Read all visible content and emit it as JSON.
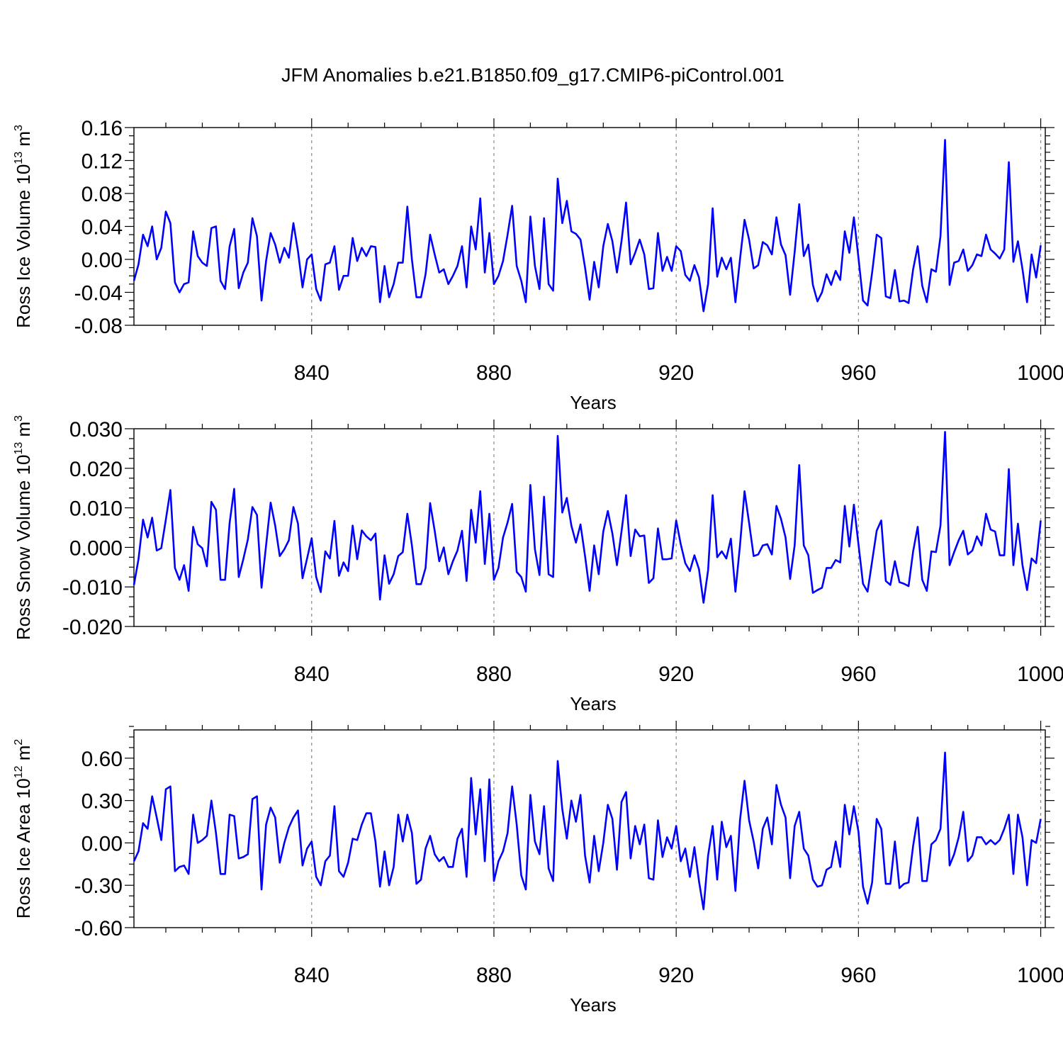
{
  "title": "JFM Anomalies b.e21.B1850.f09_g17.CMIP6-piControl.001",
  "chart_data": [
    {
      "type": "line",
      "title": "JFM Anomalies b.e21.B1850.f09_g17.CMIP6-piControl.001",
      "xlabel": "Years",
      "ylabel": "Ross Ice Volume 10",
      "ylabel_exp": "13",
      "ylabel_unit": " m",
      "ylabel_unit_exp": "3",
      "xlim": [
        801,
        1001
      ],
      "ylim": [
        -0.08,
        0.16
      ],
      "xticks": [
        "840",
        "880",
        "920",
        "960",
        "1000"
      ],
      "xtick_values": [
        840,
        880,
        920,
        960,
        1000
      ],
      "yticks": [
        "-0.08",
        "-0.04",
        "0.00",
        "0.04",
        "0.08",
        "0.12",
        "0.16"
      ],
      "ytick_values": [
        -0.08,
        -0.04,
        0.0,
        0.04,
        0.08,
        0.12,
        0.16
      ],
      "grid": "vertical dashed at major x ticks",
      "color": "#0000ff",
      "x_start": 801,
      "values": [
        -0.026,
        -0.006,
        0.03,
        0.016,
        0.04,
        0.0,
        0.014,
        0.058,
        0.044,
        -0.028,
        -0.04,
        -0.03,
        -0.028,
        0.034,
        0.004,
        -0.004,
        -0.008,
        0.038,
        0.04,
        -0.026,
        -0.036,
        0.016,
        0.037,
        -0.035,
        -0.016,
        -0.004,
        0.05,
        0.028,
        -0.05,
        -0.002,
        0.032,
        0.018,
        -0.004,
        0.014,
        0.002,
        0.044,
        0.01,
        -0.034,
        0.0,
        0.006,
        -0.036,
        -0.05,
        -0.006,
        -0.004,
        0.016,
        -0.037,
        -0.02,
        -0.02,
        0.026,
        -0.002,
        0.014,
        0.004,
        0.016,
        0.015,
        -0.052,
        -0.008,
        -0.046,
        -0.03,
        -0.004,
        -0.004,
        0.064,
        0.0,
        -0.046,
        -0.046,
        -0.018,
        0.03,
        0.006,
        -0.016,
        -0.012,
        -0.03,
        -0.02,
        -0.008,
        0.016,
        -0.034,
        0.04,
        0.012,
        0.074,
        -0.016,
        0.032,
        -0.03,
        -0.02,
        -0.002,
        0.03,
        0.065,
        -0.008,
        -0.026,
        -0.052,
        0.052,
        -0.008,
        -0.036,
        0.05,
        -0.03,
        -0.038,
        0.098,
        0.044,
        0.071,
        0.034,
        0.031,
        0.024,
        -0.01,
        -0.049,
        -0.003,
        -0.034,
        0.016,
        0.043,
        0.022,
        -0.016,
        0.022,
        0.069,
        -0.006,
        0.008,
        0.024,
        0.006,
        -0.036,
        -0.035,
        0.032,
        -0.014,
        0.003,
        -0.014,
        0.016,
        0.01,
        -0.019,
        -0.026,
        -0.007,
        -0.022,
        -0.063,
        -0.03,
        0.062,
        -0.021,
        0.002,
        -0.012,
        0.002,
        -0.052,
        0.0,
        0.048,
        0.024,
        -0.011,
        -0.007,
        0.021,
        0.017,
        0.006,
        0.051,
        0.018,
        0.005,
        -0.043,
        0.009,
        0.067,
        0.004,
        0.018,
        -0.031,
        -0.051,
        -0.04,
        -0.018,
        -0.031,
        -0.014,
        -0.025,
        0.034,
        0.008,
        0.051,
        0.002,
        -0.05,
        -0.056,
        -0.016,
        0.03,
        0.026,
        -0.045,
        -0.047,
        -0.013,
        -0.051,
        -0.05,
        -0.053,
        -0.012,
        0.016,
        -0.032,
        -0.052,
        -0.012,
        -0.015,
        0.028,
        0.145,
        -0.031,
        -0.004,
        -0.002,
        0.012,
        -0.014,
        -0.007,
        0.006,
        0.004,
        0.03,
        0.012,
        0.007,
        0.001,
        0.012,
        0.118,
        -0.003,
        0.022,
        -0.012,
        -0.052,
        0.006,
        -0.022,
        0.017
      ]
    },
    {
      "type": "line",
      "xlabel": "Years",
      "ylabel": "Ross Snow Volume 10",
      "ylabel_exp": "13",
      "ylabel_unit": " m",
      "ylabel_unit_exp": "3",
      "xlim": [
        801,
        1001
      ],
      "ylim": [
        -0.02,
        0.03
      ],
      "xticks": [
        "840",
        "880",
        "920",
        "960",
        "1000"
      ],
      "xtick_values": [
        840,
        880,
        920,
        960,
        1000
      ],
      "yticks": [
        "-0.020",
        "-0.010",
        "0.000",
        "0.010",
        "0.020",
        "0.030"
      ],
      "ytick_values": [
        -0.02,
        -0.01,
        0.0,
        0.01,
        0.02,
        0.03
      ],
      "grid": "vertical dashed at major x ticks",
      "color": "#0000ff",
      "x_start": 801,
      "values": [
        -0.0095,
        -0.003,
        0.007,
        0.0025,
        0.0075,
        -0.0008,
        -0.0002,
        0.007,
        0.0145,
        -0.0052,
        -0.0082,
        -0.0045,
        -0.011,
        0.0052,
        0.0008,
        -0.0002,
        -0.0048,
        0.0115,
        0.0095,
        -0.0082,
        -0.0082,
        0.0062,
        0.0148,
        -0.0075,
        -0.003,
        0.002,
        0.0102,
        0.0082,
        -0.0102,
        0.0005,
        0.0113,
        0.0055,
        -0.0022,
        -0.0005,
        0.0018,
        0.0102,
        0.006,
        -0.0078,
        -0.0028,
        0.0023,
        -0.0075,
        -0.0113,
        -0.001,
        -0.0028,
        0.0067,
        -0.0072,
        -0.0038,
        -0.006,
        0.0055,
        -0.003,
        0.0043,
        0.0028,
        0.0018,
        0.0035,
        -0.0132,
        -0.002,
        -0.0092,
        -0.0068,
        -0.0022,
        -0.0012,
        0.0085,
        0.0005,
        -0.0093,
        -0.0093,
        -0.0052,
        0.0112,
        0.0042,
        -0.0035,
        0.0,
        -0.0068,
        -0.0035,
        -0.0008,
        0.0042,
        -0.0085,
        0.0095,
        0.0012,
        0.0142,
        -0.0042,
        0.0085,
        -0.0082,
        -0.0052,
        0.0025,
        0.0063,
        0.011,
        -0.0062,
        -0.0075,
        -0.0112,
        0.0158,
        -0.0005,
        -0.007,
        0.0128,
        -0.0068,
        -0.0075,
        0.0282,
        0.0088,
        0.0125,
        0.0055,
        0.0012,
        0.0058,
        -0.0022,
        -0.011,
        0.0005,
        -0.0068,
        0.004,
        0.0092,
        0.0035,
        -0.0045,
        0.004,
        0.0132,
        -0.0022,
        0.0045,
        0.0028,
        0.003,
        -0.009,
        -0.0078,
        0.0048,
        -0.003,
        -0.003,
        -0.0028,
        0.0068,
        0.0008,
        -0.004,
        -0.006,
        -0.002,
        -0.0055,
        -0.014,
        -0.0058,
        0.0132,
        -0.0025,
        -0.001,
        -0.0028,
        0.0022,
        -0.0112,
        0.0005,
        0.0142,
        0.0062,
        -0.0022,
        -0.0018,
        0.0005,
        0.0008,
        -0.0018,
        0.0105,
        0.0072,
        0.0025,
        -0.008,
        0.0005,
        0.0208,
        0.0005,
        -0.002,
        -0.0115,
        -0.0108,
        -0.0102,
        -0.0052,
        -0.0052,
        -0.0032,
        -0.0038,
        0.0105,
        0.0002,
        0.0108,
        0.0008,
        -0.0092,
        -0.0112,
        -0.0035,
        0.0042,
        0.0068,
        -0.0085,
        -0.0095,
        -0.0035,
        -0.0088,
        -0.0092,
        -0.0098,
        -0.001,
        0.0052,
        -0.0082,
        -0.011,
        -0.001,
        -0.0012,
        0.0055,
        0.0292,
        -0.0045,
        -0.0012,
        0.0018,
        0.0042,
        -0.0018,
        -0.0008,
        0.0028,
        0.0005,
        0.0085,
        0.0045,
        0.004,
        -0.002,
        -0.002,
        0.0198,
        -0.0045,
        0.006,
        -0.0045,
        -0.0108,
        -0.0028,
        -0.004,
        0.0068
      ]
    },
    {
      "type": "line",
      "xlabel": "Years",
      "ylabel": "Ross Ice Area 10",
      "ylabel_exp": "12",
      "ylabel_unit": " m",
      "ylabel_unit_exp": "2",
      "xlim": [
        801,
        1001
      ],
      "ylim": [
        -0.6,
        0.8
      ],
      "xticks": [
        "840",
        "880",
        "920",
        "960",
        "1000"
      ],
      "xtick_values": [
        840,
        880,
        920,
        960,
        1000
      ],
      "yticks": [
        "-0.60",
        "-0.30",
        "0.00",
        "0.30",
        "0.60"
      ],
      "ytick_values": [
        -0.6,
        -0.3,
        0.0,
        0.3,
        0.6
      ],
      "grid": "vertical dashed at major x ticks",
      "color": "#0000ff",
      "x_start": 801,
      "values": [
        -0.13,
        -0.06,
        0.14,
        0.1,
        0.33,
        0.18,
        0.02,
        0.38,
        0.4,
        -0.2,
        -0.17,
        -0.16,
        -0.22,
        0.2,
        0.0,
        0.02,
        0.05,
        0.3,
        0.07,
        -0.22,
        -0.22,
        0.2,
        0.19,
        -0.11,
        -0.1,
        -0.08,
        0.31,
        0.33,
        -0.33,
        0.13,
        0.25,
        0.18,
        -0.14,
        0.0,
        0.11,
        0.18,
        0.23,
        -0.16,
        -0.04,
        0.01,
        -0.24,
        -0.3,
        -0.13,
        -0.09,
        0.26,
        -0.2,
        -0.24,
        -0.14,
        0.03,
        0.02,
        0.13,
        0.21,
        0.21,
        0.01,
        -0.31,
        -0.06,
        -0.3,
        -0.17,
        0.2,
        0.01,
        0.2,
        0.07,
        -0.29,
        -0.26,
        -0.04,
        0.05,
        -0.08,
        -0.13,
        -0.1,
        -0.17,
        -0.17,
        0.03,
        0.1,
        -0.24,
        0.46,
        0.06,
        0.38,
        -0.13,
        0.45,
        -0.27,
        -0.13,
        -0.06,
        0.07,
        0.4,
        0.13,
        -0.23,
        -0.33,
        0.34,
        0.01,
        -0.08,
        0.26,
        -0.18,
        -0.27,
        0.58,
        0.24,
        0.03,
        0.3,
        0.15,
        0.34,
        -0.09,
        -0.28,
        0.05,
        -0.2,
        0.0,
        0.27,
        0.17,
        -0.19,
        0.29,
        0.36,
        -0.11,
        0.12,
        -0.01,
        0.13,
        -0.25,
        -0.26,
        0.16,
        -0.1,
        0.04,
        -0.04,
        0.12,
        -0.13,
        -0.04,
        -0.24,
        -0.03,
        -0.27,
        -0.47,
        -0.09,
        0.12,
        -0.26,
        0.15,
        -0.03,
        0.05,
        -0.34,
        0.16,
        0.44,
        0.16,
        0.01,
        -0.18,
        0.1,
        0.18,
        -0.01,
        0.41,
        0.27,
        0.18,
        -0.25,
        0.12,
        0.22,
        -0.04,
        -0.09,
        -0.26,
        -0.31,
        -0.3,
        -0.19,
        -0.17,
        0.01,
        -0.17,
        0.27,
        0.06,
        0.26,
        0.08,
        -0.31,
        -0.43,
        -0.28,
        0.17,
        0.1,
        -0.29,
        -0.29,
        0.01,
        -0.32,
        -0.29,
        -0.28,
        -0.02,
        0.18,
        -0.27,
        -0.27,
        -0.01,
        0.02,
        0.1,
        0.64,
        -0.16,
        -0.08,
        0.04,
        0.22,
        -0.13,
        -0.09,
        0.04,
        0.04,
        -0.01,
        0.02,
        -0.01,
        0.02,
        0.1,
        0.2,
        -0.22,
        0.2,
        0.04,
        -0.3,
        0.02,
        0.0,
        0.17
      ]
    }
  ]
}
